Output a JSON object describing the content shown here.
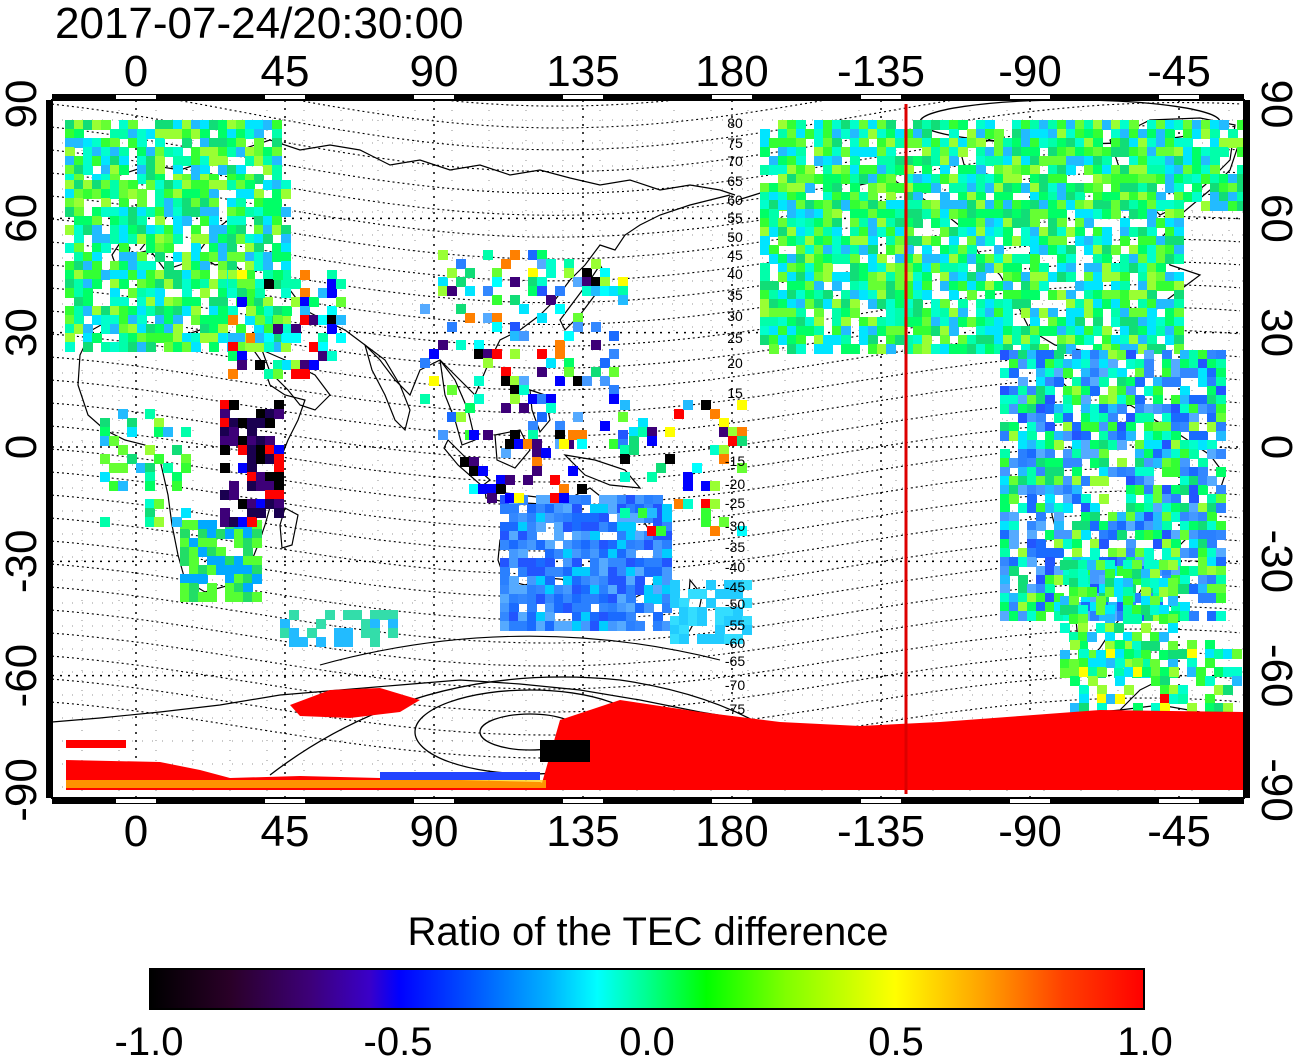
{
  "title": "2017-07-24/20:30:00",
  "map": {
    "lon_ticks_top": [
      "0",
      "45",
      "90",
      "135",
      "180",
      "-135",
      "-90",
      "-45"
    ],
    "lon_ticks_bottom": [
      "0",
      "45",
      "90",
      "135",
      "180",
      "-135",
      "-90",
      "-45"
    ],
    "lat_ticks_left": [
      "90",
      "60",
      "30",
      "0",
      "-30",
      "-60",
      "-90"
    ],
    "lat_ticks_right": [
      "90",
      "60",
      "30",
      "0",
      "-30",
      "-60",
      "-90"
    ],
    "contour_labels": [
      "80",
      "75",
      "70",
      "65",
      "60",
      "55",
      "50",
      "45",
      "40",
      "35",
      "30",
      "25",
      "20",
      "15",
      "-15",
      "-20",
      "-25",
      "-30",
      "-35",
      "-40",
      "-45",
      "-50",
      "-55",
      "-60",
      "-65",
      "-70",
      "-75"
    ],
    "meridian_line_color": "#dd0000",
    "grid": "dotted"
  },
  "colorbar": {
    "title": "Ratio of the TEC difference",
    "ticks": [
      "-1.0",
      "-0.5",
      "0.0",
      "0.5",
      "1.0"
    ],
    "tick_values": [
      -1.0,
      -0.5,
      0.0,
      0.5,
      1.0
    ],
    "range": [
      -1.0,
      1.0
    ],
    "colors": [
      "#000000",
      "#3d0078",
      "#0000ff",
      "#00ffff",
      "#00ff00",
      "#ffff00",
      "#ff0000"
    ]
  }
}
